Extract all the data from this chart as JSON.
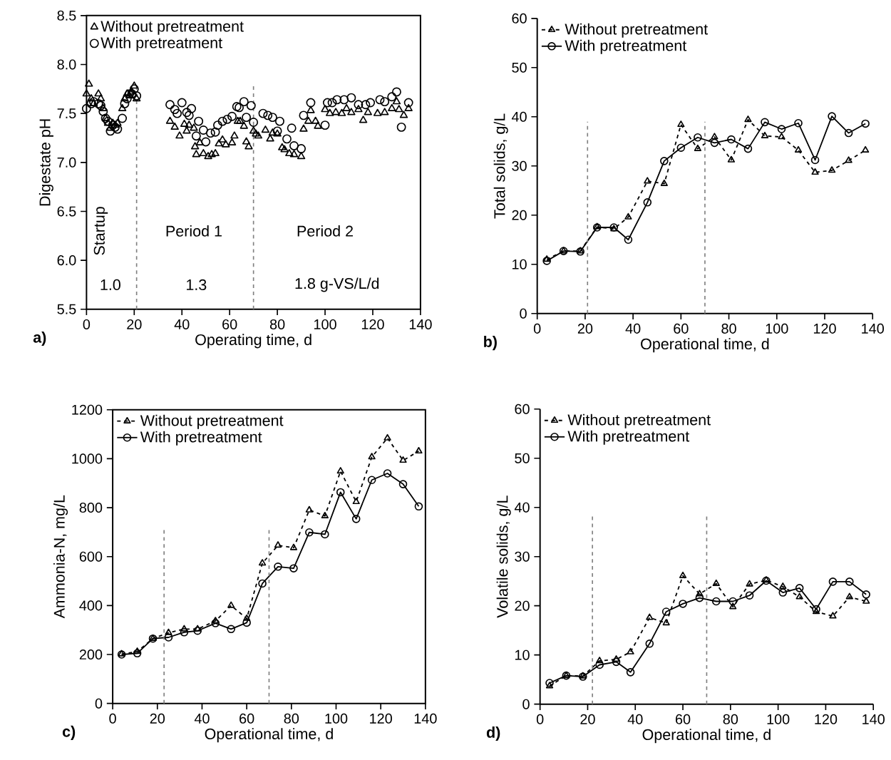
{
  "chart_data": [
    {
      "type": "scatter",
      "xlabel": "Operating time, d",
      "ylabel": "Digestate pH",
      "legend": "top left",
      "xlim": [
        0,
        140
      ],
      "xticks": [
        0,
        20,
        40,
        60,
        80,
        100,
        120,
        140
      ],
      "ylim": [
        5.5,
        8.5
      ],
      "yticks": [
        5.5,
        {
          "value": 6,
          "label": "6.0"
        },
        6.5,
        {
          "value": 7,
          "label": "7.0"
        },
        7.5,
        {
          "value": 8,
          "label": "8.0"
        },
        8.5
      ],
      "ref_lines": [
        {
          "axis": "x",
          "value": 21,
          "color": "#808080",
          "line_style": "dashed"
        },
        {
          "axis": "x",
          "value": 70,
          "color": "#808080",
          "line_style": "dashed"
        }
      ],
      "annotations": [
        "Startup",
        "Period 1",
        "Period 2",
        "1.0",
        "1.3",
        "1.8 g-VS/L/d",
        "a)"
      ],
      "series": [
        {
          "name": "Without pretreatment",
          "color": "#000000",
          "marker": "triangle",
          "x": [
            0,
            1,
            2,
            3,
            5,
            6,
            7,
            8,
            9,
            10,
            11,
            12,
            13,
            15,
            16,
            17,
            18,
            19,
            20,
            21,
            35,
            37,
            39,
            41,
            42,
            43,
            45,
            45.5,
            46,
            47.5,
            49,
            51,
            52.5,
            54,
            55.5,
            57,
            58.4,
            61,
            62,
            63.4,
            64.4,
            66,
            67,
            68,
            70,
            71,
            72,
            75,
            77,
            78,
            80,
            82,
            83,
            85,
            87,
            90,
            91,
            93,
            94,
            96,
            97,
            100,
            102,
            104.5,
            107,
            109,
            111,
            114,
            116,
            118,
            122,
            125,
            128,
            130,
            131,
            133,
            135
          ],
          "values": [
            7.7,
            7.8,
            7.65,
            7.6,
            7.7,
            7.65,
            7.55,
            7.45,
            7.4,
            7.35,
            7.4,
            7.38,
            7.4,
            7.55,
            7.65,
            7.7,
            7.68,
            7.72,
            7.78,
            7.65,
            7.42,
            7.36,
            7.27,
            7.39,
            7.32,
            7.38,
            7.35,
            7.16,
            7.08,
            7.2,
            7.09,
            7.06,
            7.08,
            7.09,
            7.19,
            7.23,
            7.18,
            7.2,
            7.27,
            7.42,
            7.42,
            7.37,
            7.21,
            7.16,
            7.32,
            7.29,
            7.27,
            7.33,
            7.24,
            7.3,
            7.29,
            7.15,
            7.13,
            7.09,
            7.08,
            7.06,
            7.34,
            7.42,
            7.53,
            7.42,
            7.37,
            7.54,
            7.5,
            7.51,
            7.5,
            7.55,
            7.51,
            7.54,
            7.43,
            7.51,
            7.5,
            7.51,
            7.55,
            7.62,
            7.54,
            7.48,
            7.55
          ]
        },
        {
          "name": "With pretreatment",
          "color": "#000000",
          "marker": "circle",
          "x": [
            0,
            2,
            3,
            5,
            6,
            7,
            8,
            9,
            10,
            11,
            12,
            13,
            15,
            16,
            17,
            18,
            19,
            20,
            21,
            35,
            37,
            38,
            40,
            42,
            43,
            44,
            46,
            47,
            49,
            50,
            52,
            54,
            55,
            57,
            59,
            61,
            63,
            64,
            66,
            67,
            69,
            70,
            74,
            76,
            78,
            80,
            81,
            84,
            86,
            87,
            90,
            91,
            94,
            100,
            101,
            103,
            105,
            108,
            111,
            114,
            117,
            119,
            123,
            125,
            128,
            130,
            132,
            135
          ],
          "values": [
            7.55,
            7.6,
            7.62,
            7.6,
            7.58,
            7.52,
            7.45,
            7.42,
            7.32,
            7.38,
            7.36,
            7.34,
            7.45,
            7.6,
            7.65,
            7.7,
            7.7,
            7.75,
            7.68,
            7.59,
            7.54,
            7.5,
            7.61,
            7.51,
            7.48,
            7.55,
            7.27,
            7.42,
            7.33,
            7.21,
            7.3,
            7.31,
            7.38,
            7.42,
            7.44,
            7.47,
            7.57,
            7.56,
            7.62,
            7.46,
            7.58,
            7.41,
            7.5,
            7.48,
            7.46,
            7.32,
            7.42,
            7.24,
            7.35,
            7.17,
            7.14,
            7.48,
            7.61,
            7.38,
            7.61,
            7.61,
            7.64,
            7.64,
            7.66,
            7.59,
            7.59,
            7.61,
            7.64,
            7.62,
            7.67,
            7.72,
            7.36,
            7.61
          ]
        }
      ]
    },
    {
      "type": "line",
      "xlabel": "Operational time, d",
      "ylabel": "Total solids, g/L",
      "legend": "top left",
      "xlim": [
        0,
        140
      ],
      "xticks": [
        0,
        20,
        40,
        60,
        80,
        100,
        120,
        140
      ],
      "ylim": [
        0,
        60
      ],
      "yticks": [
        0,
        10,
        20,
        30,
        40,
        50,
        60
      ],
      "ref_lines": [
        {
          "axis": "x",
          "value": 21,
          "color": "#808080",
          "line_style": "dashed"
        },
        {
          "axis": "x",
          "value": 70,
          "color": "#808080",
          "line_style": "dashed"
        }
      ],
      "annotations": [
        "b)"
      ],
      "x": [
        4,
        11,
        18,
        25,
        32,
        38,
        46,
        53,
        60,
        67,
        74,
        81,
        88,
        95,
        102,
        109,
        116,
        123,
        130,
        137
      ],
      "series": [
        {
          "name": "Without pretreatment",
          "color": "#000000",
          "marker": "triangle",
          "line_style": "dashed",
          "values": [
            11.0,
            12.7,
            12.7,
            17.6,
            17.2,
            19.6,
            26.9,
            26.4,
            38.4,
            33.5,
            35.9,
            31.2,
            39.4,
            36.1,
            35.9,
            33.2,
            28.7,
            29.1,
            31.1,
            33.2
          ]
        },
        {
          "name": "With pretreatment",
          "color": "#000000",
          "marker": "circle",
          "line_style": "solid",
          "values": [
            10.7,
            12.7,
            12.6,
            17.5,
            17.5,
            15.0,
            22.6,
            31.0,
            33.7,
            35.8,
            34.7,
            35.4,
            33.5,
            38.9,
            37.5,
            38.7,
            31.2,
            40.1,
            36.7,
            38.6
          ]
        }
      ]
    },
    {
      "type": "line",
      "xlabel": "Operational time, d",
      "ylabel": "Ammonia-N, mg/L",
      "legend": "top left",
      "xlim": [
        0,
        140
      ],
      "xticks": [
        0,
        20,
        40,
        60,
        80,
        100,
        120,
        140
      ],
      "ylim": [
        0,
        1200
      ],
      "yticks": [
        0,
        200,
        400,
        600,
        800,
        1000,
        1200
      ],
      "ref_lines": [
        {
          "axis": "x",
          "value": 23,
          "color": "#808080",
          "line_style": "dashed"
        },
        {
          "axis": "x",
          "value": 70,
          "color": "#808080",
          "line_style": "dashed"
        }
      ],
      "annotations": [
        "c)"
      ],
      "x": [
        4,
        11,
        18,
        25,
        32,
        38,
        46,
        53,
        60,
        67,
        74,
        81,
        88,
        95,
        102,
        109,
        116,
        123,
        130,
        137
      ],
      "series": [
        {
          "name": "Without pretreatment",
          "color": "#000000",
          "marker": "triangle",
          "line_style": "dashed",
          "values": [
            202,
            212,
            265,
            289,
            304,
            304,
            337,
            400,
            347,
            573,
            646,
            636,
            790,
            766,
            949,
            824,
            1007,
            1084,
            993,
            1031
          ]
        },
        {
          "name": "With pretreatment",
          "color": "#000000",
          "marker": "circle",
          "line_style": "solid",
          "values": [
            200,
            205,
            265,
            270,
            291,
            297,
            328,
            304,
            330,
            490,
            559,
            552,
            699,
            691,
            863,
            754,
            913,
            940,
            896,
            805
          ]
        }
      ]
    },
    {
      "type": "line",
      "xlabel": "Operational time, d",
      "ylabel": "Volatile solids, g/L",
      "legend": "top left",
      "xlim": [
        0,
        140
      ],
      "xticks": [
        0,
        20,
        40,
        60,
        80,
        100,
        120,
        140
      ],
      "ylim": [
        0,
        60
      ],
      "yticks": [
        0,
        10,
        20,
        30,
        40,
        50,
        60
      ],
      "ref_lines": [
        {
          "axis": "x",
          "value": 22,
          "color": "#808080",
          "line_style": "dashed"
        },
        {
          "axis": "x",
          "value": 70,
          "color": "#808080",
          "line_style": "dashed"
        }
      ],
      "annotations": [
        "d)"
      ],
      "x": [
        4,
        11,
        18,
        25,
        32,
        38,
        46,
        53,
        60,
        67,
        74,
        81,
        88,
        95,
        102,
        109,
        116,
        123,
        130,
        137
      ],
      "series": [
        {
          "name": "Without pretreatment",
          "color": "#000000",
          "marker": "triangle",
          "line_style": "dashed",
          "values": [
            3.7,
            5.8,
            5.7,
            8.8,
            9.1,
            10.6,
            17.6,
            16.5,
            26.1,
            22.4,
            24.5,
            19.8,
            24.4,
            25.2,
            23.9,
            21.8,
            18.8,
            17.9,
            21.8,
            20.9
          ]
        },
        {
          "name": "With pretreatment",
          "color": "#000000",
          "marker": "circle",
          "line_style": "solid",
          "values": [
            4.3,
            5.8,
            5.6,
            8.0,
            8.6,
            6.5,
            12.3,
            18.8,
            20.4,
            21.6,
            20.9,
            20.9,
            22.1,
            25.1,
            22.7,
            23.6,
            19.3,
            24.9,
            24.9,
            22.3
          ]
        }
      ]
    }
  ]
}
